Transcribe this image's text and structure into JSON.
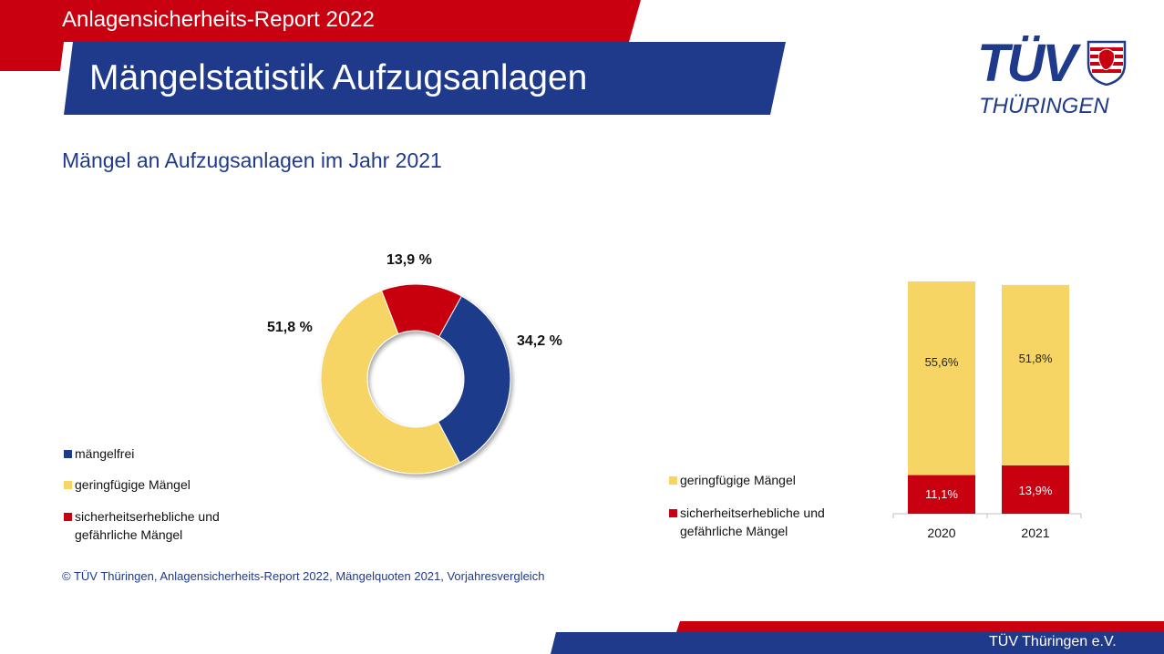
{
  "header": {
    "report_title": "Anlagensicherheits-Report 2022",
    "page_title": "Mängelstatistik Aufzugsanlagen",
    "logo_tuv": "TÜV",
    "logo_region": "THÜRINGEN"
  },
  "subtitle": "Mängel an Aufzugsanlagen im Jahr 2021",
  "colors": {
    "red": "#c8000f",
    "blue": "#1f3a8a",
    "yellow": "#f7d565",
    "dark_red": "#b5000d"
  },
  "chart_data": [
    {
      "type": "pie",
      "title": "",
      "labels": [
        "mängelfrei",
        "geringfügige Mängel",
        "sicherheitserhebliche und gefährliche Mängel"
      ],
      "values": [
        34.2,
        51.8,
        13.9
      ],
      "value_labels": [
        "34,2 %",
        "51,8 %",
        "13,9 %"
      ],
      "colors": [
        "#1f3a8a",
        "#f7d565",
        "#c8000f"
      ],
      "legend": "bottom-left"
    },
    {
      "type": "bar",
      "stacked": true,
      "categories": [
        "2020",
        "2021"
      ],
      "series": [
        {
          "name": "sicherheitserhebliche und gefährliche Mängel",
          "values": [
            11.1,
            13.9
          ],
          "labels": [
            "11,1%",
            "13,9%"
          ],
          "color": "#c8000f"
        },
        {
          "name": "geringfügige Mängel",
          "values": [
            55.6,
            51.8
          ],
          "labels": [
            "55,6%",
            "51,8%"
          ],
          "color": "#f7d565"
        }
      ],
      "ylim": [
        0,
        66.7
      ],
      "legend": "left"
    }
  ],
  "pie_legend": {
    "item1": "mängelfrei",
    "item2": "geringfügige Mängel",
    "item3_line1": "sicherheitserhebliche und",
    "item3_line2": "gefährliche  Mängel"
  },
  "bar_legend": {
    "item1": "geringfügige Mängel",
    "item2_line1": "sicherheitserhebliche und",
    "item2_line2": "gefährliche Mängel"
  },
  "source": "© TÜV Thüringen, Anlagensicherheits-Report 2022, Mängelquoten 2021, Vorjahresvergleich",
  "footer": "TÜV Thüringen e.V."
}
